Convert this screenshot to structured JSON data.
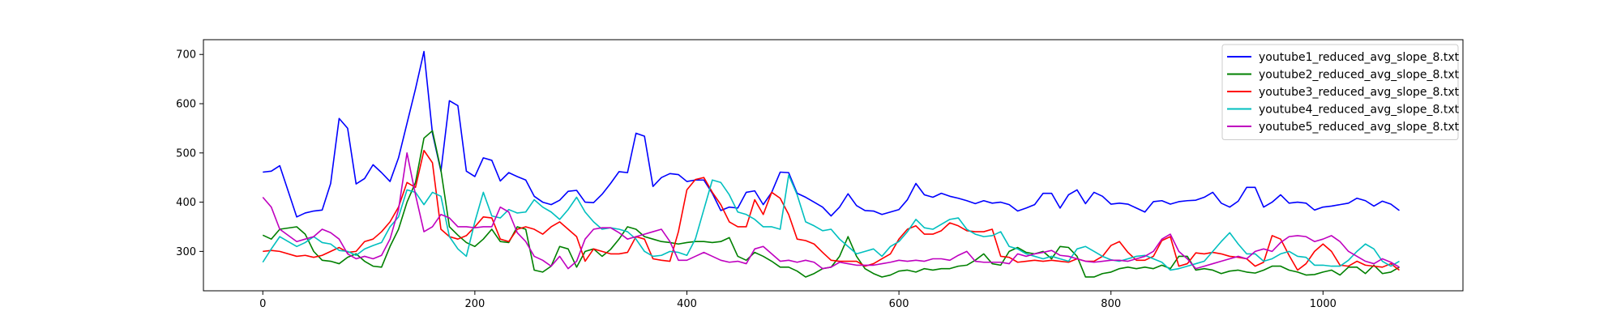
{
  "chart_data": {
    "type": "line",
    "title": "",
    "xlabel": "",
    "ylabel": "",
    "xlim": [
      -56,
      1132
    ],
    "ylim": [
      220,
      730
    ],
    "xticks": [
      0,
      200,
      400,
      600,
      800,
      1000
    ],
    "yticks": [
      300,
      400,
      500,
      600,
      700
    ],
    "grid": false,
    "legend_position": "top-right",
    "x": [
      0,
      8,
      16,
      32,
      40,
      48,
      56,
      64,
      72,
      80,
      88,
      96,
      104,
      112,
      120,
      128,
      136,
      144,
      152,
      160,
      168,
      176,
      184,
      192,
      200,
      208,
      216,
      224,
      232,
      240,
      248,
      256,
      264,
      272,
      280,
      288,
      296,
      304,
      312,
      320,
      328,
      336,
      344,
      352,
      360,
      368,
      376,
      384,
      392,
      400,
      408,
      416,
      424,
      432,
      440,
      448,
      456,
      464,
      472,
      480,
      488,
      496,
      504,
      512,
      520,
      528,
      536,
      544,
      552,
      560,
      568,
      576,
      584,
      592,
      600,
      608,
      616,
      624,
      632,
      640,
      648,
      656,
      664,
      672,
      680,
      688,
      696,
      704,
      712,
      720,
      728,
      736,
      744,
      752,
      760,
      768,
      776,
      784,
      792,
      800,
      808,
      816,
      824,
      832,
      840,
      848,
      856,
      864,
      872,
      880,
      888,
      896,
      904,
      912,
      920,
      928,
      936,
      944,
      952,
      960,
      968,
      976,
      984,
      992,
      1000,
      1008,
      1016,
      1024,
      1032,
      1040,
      1048,
      1056,
      1064,
      1072
    ],
    "series": [
      {
        "name": "youtube1_reduced_avg_slope_8.txt",
        "color": "#0000ff",
        "values": [
          461,
          463,
          474,
          370,
          378,
          382,
          384,
          438,
          570,
          550,
          437,
          448,
          476,
          460,
          442,
          490,
          560,
          630,
          706,
          540,
          463,
          606,
          596,
          463,
          452,
          490,
          485,
          443,
          460,
          452,
          445,
          412,
          400,
          395,
          404,
          422,
          424,
          400,
          399,
          416,
          438,
          462,
          460,
          540,
          534,
          432,
          450,
          458,
          456,
          442,
          445,
          445,
          418,
          383,
          390,
          388,
          420,
          423,
          395,
          420,
          461,
          460,
          418,
          410,
          400,
          390,
          372,
          390,
          417,
          393,
          383,
          382,
          375,
          380,
          385,
          405,
          438,
          415,
          410,
          418,
          412,
          408,
          403,
          397,
          403,
          398,
          400,
          395,
          382,
          388,
          395,
          418,
          418,
          388,
          415,
          425,
          397,
          420,
          412,
          396,
          398,
          396,
          388,
          380,
          401,
          403,
          396,
          401,
          403,
          404,
          410,
          420,
          398,
          390,
          402,
          430,
          430,
          390,
          400,
          415,
          398,
          400,
          398,
          384,
          390,
          392,
          395,
          398,
          408,
          403,
          392,
          402,
          396,
          383
        ]
      },
      {
        "name": "youtube2_reduced_avg_slope_8.txt",
        "color": "#008000",
        "values": [
          333,
          325,
          345,
          350,
          335,
          300,
          282,
          280,
          275,
          288,
          295,
          280,
          270,
          268,
          310,
          345,
          400,
          440,
          530,
          545,
          465,
          350,
          333,
          318,
          310,
          325,
          345,
          320,
          318,
          350,
          345,
          262,
          258,
          270,
          310,
          305,
          268,
          300,
          305,
          290,
          304,
          325,
          350,
          345,
          330,
          325,
          320,
          318,
          315,
          318,
          320,
          320,
          318,
          320,
          328,
          290,
          282,
          298,
          290,
          280,
          268,
          268,
          260,
          248,
          255,
          265,
          268,
          290,
          330,
          290,
          265,
          255,
          248,
          252,
          260,
          262,
          258,
          265,
          262,
          265,
          265,
          270,
          272,
          282,
          295,
          275,
          272,
          300,
          308,
          298,
          295,
          300,
          285,
          310,
          308,
          290,
          248,
          248,
          255,
          258,
          265,
          268,
          265,
          268,
          265,
          272,
          265,
          290,
          290,
          262,
          265,
          262,
          255,
          260,
          262,
          258,
          256,
          262,
          270,
          270,
          262,
          258,
          252,
          253,
          258,
          262,
          252,
          268,
          268,
          255,
          272,
          255,
          258,
          268
        ]
      },
      {
        "name": "youtube3_reduced_avg_slope_8.txt",
        "color": "#ff0000",
        "values": [
          300,
          302,
          300,
          290,
          292,
          288,
          292,
          300,
          308,
          298,
          300,
          320,
          325,
          340,
          360,
          390,
          440,
          430,
          505,
          480,
          345,
          330,
          325,
          332,
          350,
          370,
          368,
          325,
          320,
          345,
          350,
          345,
          335,
          350,
          360,
          345,
          330,
          280,
          305,
          300,
          295,
          295,
          298,
          330,
          325,
          285,
          282,
          280,
          340,
          425,
          446,
          450,
          420,
          395,
          360,
          350,
          350,
          405,
          375,
          420,
          408,
          375,
          325,
          322,
          315,
          298,
          282,
          280,
          280,
          280,
          270,
          275,
          285,
          295,
          325,
          345,
          352,
          335,
          335,
          342,
          358,
          352,
          342,
          340,
          340,
          345,
          290,
          288,
          278,
          280,
          282,
          280,
          282,
          280,
          278,
          285,
          280,
          280,
          290,
          312,
          320,
          298,
          282,
          282,
          290,
          322,
          330,
          270,
          275,
          297,
          295,
          298,
          295,
          290,
          288,
          285,
          270,
          278,
          332,
          325,
          292,
          262,
          275,
          300,
          315,
          300,
          272,
          270,
          280,
          272,
          270,
          268,
          275,
          262
        ]
      },
      {
        "name": "youtube4_reduced_avg_slope_8.txt",
        "color": "#00bfbf",
        "values": [
          278,
          305,
          330,
          310,
          318,
          330,
          318,
          315,
          302,
          300,
          292,
          305,
          312,
          318,
          350,
          370,
          425,
          420,
          395,
          420,
          412,
          330,
          305,
          290,
          360,
          420,
          372,
          368,
          385,
          378,
          380,
          405,
          390,
          380,
          365,
          385,
          410,
          380,
          360,
          345,
          348,
          345,
          340,
          325,
          300,
          290,
          292,
          300,
          298,
          292,
          325,
          385,
          445,
          440,
          415,
          380,
          375,
          365,
          350,
          350,
          345,
          455,
          415,
          360,
          352,
          342,
          345,
          325,
          310,
          295,
          300,
          305,
          290,
          310,
          320,
          340,
          365,
          348,
          345,
          355,
          365,
          368,
          345,
          335,
          330,
          332,
          340,
          310,
          305,
          295,
          290,
          285,
          290,
          285,
          280,
          305,
          310,
          300,
          290,
          283,
          280,
          285,
          290,
          292,
          285,
          278,
          262,
          265,
          270,
          275,
          280,
          300,
          320,
          338,
          315,
          295,
          295,
          280,
          285,
          295,
          300,
          290,
          288,
          272,
          272,
          270,
          270,
          282,
          300,
          315,
          305,
          280,
          270,
          280
        ]
      },
      {
        "name": "youtube5_reduced_avg_slope_8.txt",
        "color": "#bf00bf",
        "values": [
          410,
          390,
          345,
          320,
          325,
          330,
          345,
          338,
          325,
          295,
          285,
          290,
          285,
          292,
          325,
          385,
          500,
          415,
          340,
          350,
          375,
          368,
          350,
          350,
          348,
          350,
          350,
          390,
          380,
          338,
          320,
          290,
          282,
          270,
          290,
          265,
          280,
          325,
          345,
          348,
          348,
          338,
          325,
          330,
          335,
          340,
          345,
          320,
          282,
          282,
          290,
          298,
          290,
          282,
          278,
          280,
          275,
          305,
          310,
          295,
          280,
          282,
          278,
          282,
          278,
          265,
          268,
          278,
          275,
          272,
          272,
          272,
          275,
          278,
          282,
          280,
          282,
          280,
          285,
          285,
          282,
          292,
          300,
          280,
          278,
          278,
          278,
          275,
          295,
          290,
          295,
          298,
          302,
          292,
          290,
          285,
          280,
          278,
          280,
          282,
          282,
          280,
          285,
          290,
          300,
          325,
          335,
          300,
          285,
          265,
          270,
          275,
          280,
          285,
          290,
          285,
          300,
          305,
          300,
          318,
          330,
          332,
          330,
          320,
          325,
          332,
          320,
          300,
          290,
          280,
          275,
          285,
          278,
          268
        ]
      }
    ]
  }
}
